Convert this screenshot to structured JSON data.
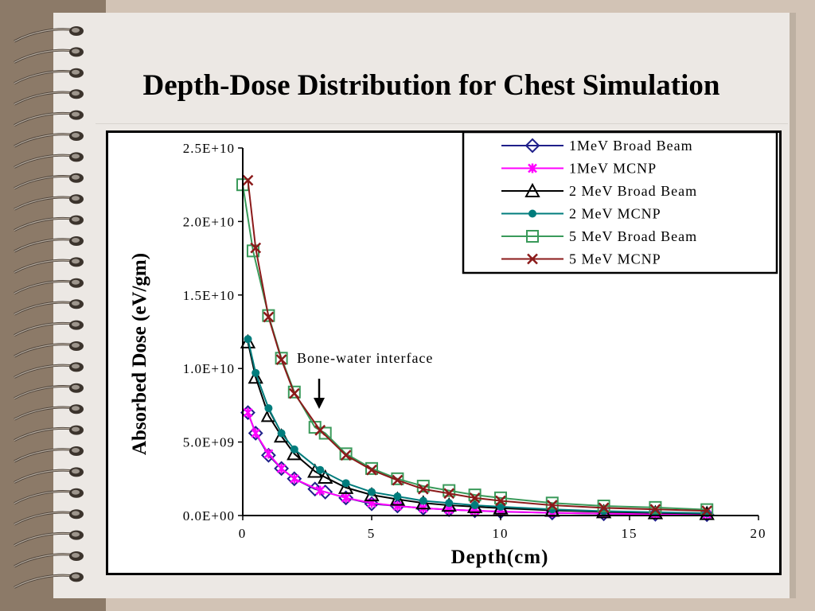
{
  "slide": {
    "title": "Depth-Dose Distribution for Chest Simulation"
  },
  "chart_data": {
    "type": "line",
    "title": "Depth-Dose Distribution for Chest Simulation",
    "xlabel": "Depth(cm)",
    "ylabel": "Absorbed Dose (eV/gm)",
    "xlim": [
      0,
      20
    ],
    "ylim": [
      0,
      25000000000
    ],
    "xticks": [
      0,
      5,
      10,
      15,
      20
    ],
    "xtick_labels": [
      "0",
      "5",
      "10",
      "15",
      "20"
    ],
    "yticks": [
      0,
      5000000000,
      10000000000,
      15000000000,
      20000000000,
      25000000000
    ],
    "ytick_labels": [
      "0.0E+00",
      "5.0E+09",
      "1.0E+10",
      "1.5E+10",
      "2.0E+10",
      "2.5E+10"
    ],
    "grid": false,
    "legend_position": "top-right",
    "annotation": {
      "text": "Bone-water interface",
      "x": 3,
      "y": 9000000000
    },
    "series": [
      {
        "name": "1MeV Broad Beam",
        "color": "#1f1f8a",
        "marker": "diamond",
        "x": [
          0.2,
          0.5,
          1,
          1.5,
          2,
          2.8,
          3.2,
          4,
          5,
          6,
          7,
          8,
          9,
          10,
          12,
          14,
          16,
          18
        ],
        "y": [
          7000000000,
          5600000000,
          4100000000,
          3200000000,
          2500000000,
          1800000000,
          1600000000,
          1200000000,
          800000000,
          650000000,
          500000000,
          400000000,
          330000000,
          260000000,
          180000000,
          120000000,
          90000000,
          60000000
        ]
      },
      {
        "name": "1MeV MCNP",
        "color": "#ff00ff",
        "marker": "asterisk",
        "x": [
          0.2,
          0.5,
          1,
          1.5,
          2,
          3,
          4,
          5,
          6,
          7,
          8,
          9,
          10,
          12,
          14,
          16,
          18
        ],
        "y": [
          7000000000,
          5600000000,
          4200000000,
          3200000000,
          2500000000,
          1700000000,
          1200000000,
          850000000,
          650000000,
          500000000,
          400000000,
          330000000,
          270000000,
          180000000,
          130000000,
          90000000,
          60000000
        ]
      },
      {
        "name": "2 MeV Broad Beam",
        "color": "#000000",
        "marker": "triangle",
        "x": [
          0.2,
          0.5,
          1,
          1.5,
          2,
          2.8,
          3.2,
          4,
          5,
          6,
          7,
          8,
          9,
          10,
          12,
          14,
          16,
          18
        ],
        "y": [
          11800000000,
          9400000000,
          6800000000,
          5400000000,
          4200000000,
          3000000000,
          2600000000,
          1900000000,
          1400000000,
          1100000000,
          850000000,
          700000000,
          600000000,
          500000000,
          350000000,
          250000000,
          180000000,
          130000000
        ]
      },
      {
        "name": "2 MeV MCNP",
        "color": "#007c7c",
        "marker": "circle",
        "x": [
          0.2,
          0.5,
          1,
          1.5,
          2,
          3,
          4,
          5,
          6,
          7,
          8,
          9,
          10,
          12,
          14,
          16,
          18
        ],
        "y": [
          12000000000,
          9700000000,
          7300000000,
          5600000000,
          4500000000,
          3100000000,
          2200000000,
          1600000000,
          1300000000,
          1000000000,
          850000000,
          700000000,
          600000000,
          420000000,
          300000000,
          220000000,
          160000000
        ]
      },
      {
        "name": "5 MeV Broad Beam",
        "color": "#3a9a5a",
        "marker": "square",
        "x": [
          0,
          0.4,
          1,
          1.5,
          2,
          2.8,
          3.2,
          4,
          5,
          6,
          7,
          8,
          9,
          10,
          12,
          14,
          16,
          18
        ],
        "y": [
          22500000000,
          18000000000,
          13600000000,
          10700000000,
          8400000000,
          6000000000,
          5600000000,
          4200000000,
          3200000000,
          2500000000,
          2000000000,
          1700000000,
          1400000000,
          1200000000,
          850000000,
          650000000,
          550000000,
          400000000
        ]
      },
      {
        "name": "5 MeV MCNP",
        "color": "#8b1a1a",
        "marker": "x",
        "x": [
          0.2,
          0.5,
          1,
          1.5,
          2,
          3,
          4,
          5,
          6,
          7,
          8,
          9,
          10,
          12,
          14,
          16,
          18
        ],
        "y": [
          22800000000,
          18200000000,
          13500000000,
          10600000000,
          8300000000,
          5800000000,
          4100000000,
          3100000000,
          2400000000,
          1800000000,
          1500000000,
          1200000000,
          1000000000,
          700000000,
          520000000,
          420000000,
          320000000
        ]
      }
    ]
  }
}
